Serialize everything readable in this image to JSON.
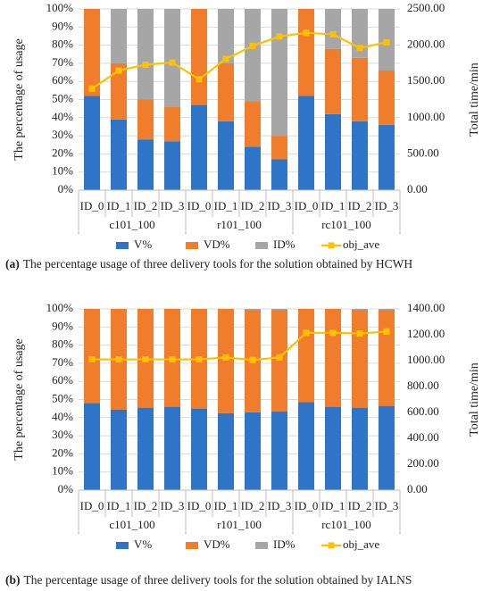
{
  "chart_data": [
    {
      "type": "bar",
      "stacked": true,
      "y_label": "The percentage of usage",
      "y2_label": "Total time/min",
      "caption_tag": "(a)",
      "caption": "The percentage usage of three delivery tools for the solution obtained by HCWH",
      "categories": [
        "ID_0",
        "ID_1",
        "ID_2",
        "ID_3",
        "ID_0",
        "ID_1",
        "ID_2",
        "ID_3",
        "ID_0",
        "ID_1",
        "ID_2",
        "ID_3"
      ],
      "groups": [
        "c101_100",
        "r101_100",
        "rc101_100"
      ],
      "series": [
        {
          "name": "V%",
          "type": "bar",
          "color": "#2e75c8",
          "values": [
            52,
            39,
            28,
            27,
            47,
            38,
            24,
            17,
            52,
            42,
            38,
            36
          ]
        },
        {
          "name": "VD%",
          "type": "bar",
          "color": "#f07d2c",
          "values": [
            48,
            31,
            22,
            19,
            53,
            32,
            25,
            13,
            48,
            36,
            35,
            30
          ]
        },
        {
          "name": "ID%",
          "type": "bar",
          "color": "#a6a6a6",
          "values": [
            0,
            30,
            50,
            54,
            0,
            30,
            51,
            70,
            0,
            22,
            27,
            34
          ]
        },
        {
          "name": "obj_ave",
          "type": "line",
          "axis": "y2",
          "color": "#ffc000",
          "values": [
            1400,
            1650,
            1730,
            1760,
            1530,
            1810,
            1990,
            2120,
            2170,
            2150,
            1960,
            2040
          ]
        }
      ],
      "ylim": [
        0,
        100
      ],
      "yticks": [
        {
          "value": 0,
          "label": "0%"
        },
        {
          "value": 10,
          "label": "10%"
        },
        {
          "value": 20,
          "label": "20%"
        },
        {
          "value": 30,
          "label": "30%"
        },
        {
          "value": 40,
          "label": "40%"
        },
        {
          "value": 50,
          "label": "50%"
        },
        {
          "value": 60,
          "label": "60%"
        },
        {
          "value": 70,
          "label": "70%"
        },
        {
          "value": 80,
          "label": "80%"
        },
        {
          "value": 90,
          "label": "90%"
        },
        {
          "value": 100,
          "label": "100%"
        }
      ],
      "y2lim": [
        0,
        2500
      ],
      "y2ticks": [
        {
          "value": 0,
          "label": "0.00"
        },
        {
          "value": 500,
          "label": "500.00"
        },
        {
          "value": 1000,
          "label": "1000.00"
        },
        {
          "value": 1500,
          "label": "1500.00"
        },
        {
          "value": 2000,
          "label": "2000.00"
        },
        {
          "value": 2500,
          "label": "2500.00"
        }
      ],
      "grid": true,
      "legend": "bottom"
    },
    {
      "type": "bar",
      "stacked": true,
      "y_label": "The percentage of usage",
      "y2_label": "Total time/min",
      "caption_tag": "(b)",
      "caption": "The percentage usage of three delivery tools for the solution obtained by IALNS",
      "categories": [
        "ID_0",
        "ID_1",
        "ID_2",
        "ID_3",
        "ID_0",
        "ID_1",
        "ID_2",
        "ID_3",
        "ID_0",
        "ID_1",
        "ID_2",
        "ID_3"
      ],
      "groups": [
        "c101_100",
        "r101_100",
        "rc101_100"
      ],
      "series": [
        {
          "name": "V%",
          "type": "bar",
          "color": "#2e75c8",
          "values": [
            48,
            44.5,
            45.5,
            46,
            45,
            42.5,
            43,
            43.5,
            48.5,
            46,
            45.5,
            46.5
          ]
        },
        {
          "name": "VD%",
          "type": "bar",
          "color": "#f07d2c",
          "values": [
            52,
            55.5,
            54.5,
            54,
            55,
            57.5,
            56.5,
            56,
            51.5,
            54,
            54,
            53
          ]
        },
        {
          "name": "ID%",
          "type": "bar",
          "color": "#a6a6a6",
          "values": [
            0,
            0,
            0,
            0,
            0,
            0,
            0.5,
            0.5,
            0,
            0,
            0.5,
            0.5
          ]
        },
        {
          "name": "obj_ave",
          "type": "line",
          "axis": "y2",
          "color": "#ffc000",
          "values": [
            1010,
            1010,
            1010,
            1010,
            1010,
            1025,
            1005,
            1025,
            1215,
            1215,
            1210,
            1225
          ]
        }
      ],
      "ylim": [
        0,
        100
      ],
      "yticks": [
        {
          "value": 0,
          "label": "0%"
        },
        {
          "value": 10,
          "label": "10%"
        },
        {
          "value": 20,
          "label": "20%"
        },
        {
          "value": 30,
          "label": "30%"
        },
        {
          "value": 40,
          "label": "40%"
        },
        {
          "value": 50,
          "label": "50%"
        },
        {
          "value": 60,
          "label": "60%"
        },
        {
          "value": 70,
          "label": "70%"
        },
        {
          "value": 80,
          "label": "80%"
        },
        {
          "value": 90,
          "label": "90%"
        },
        {
          "value": 100,
          "label": "100%"
        }
      ],
      "y2lim": [
        0,
        1400
      ],
      "y2ticks": [
        {
          "value": 0,
          "label": "0.00"
        },
        {
          "value": 200,
          "label": "200.00"
        },
        {
          "value": 400,
          "label": "400.00"
        },
        {
          "value": 600,
          "label": "600.00"
        },
        {
          "value": 800,
          "label": "800.00"
        },
        {
          "value": 1000,
          "label": "1000.00"
        },
        {
          "value": 1200,
          "label": "1200.00"
        },
        {
          "value": 1400,
          "label": "1400.00"
        }
      ],
      "grid": true,
      "legend": "bottom"
    }
  ]
}
